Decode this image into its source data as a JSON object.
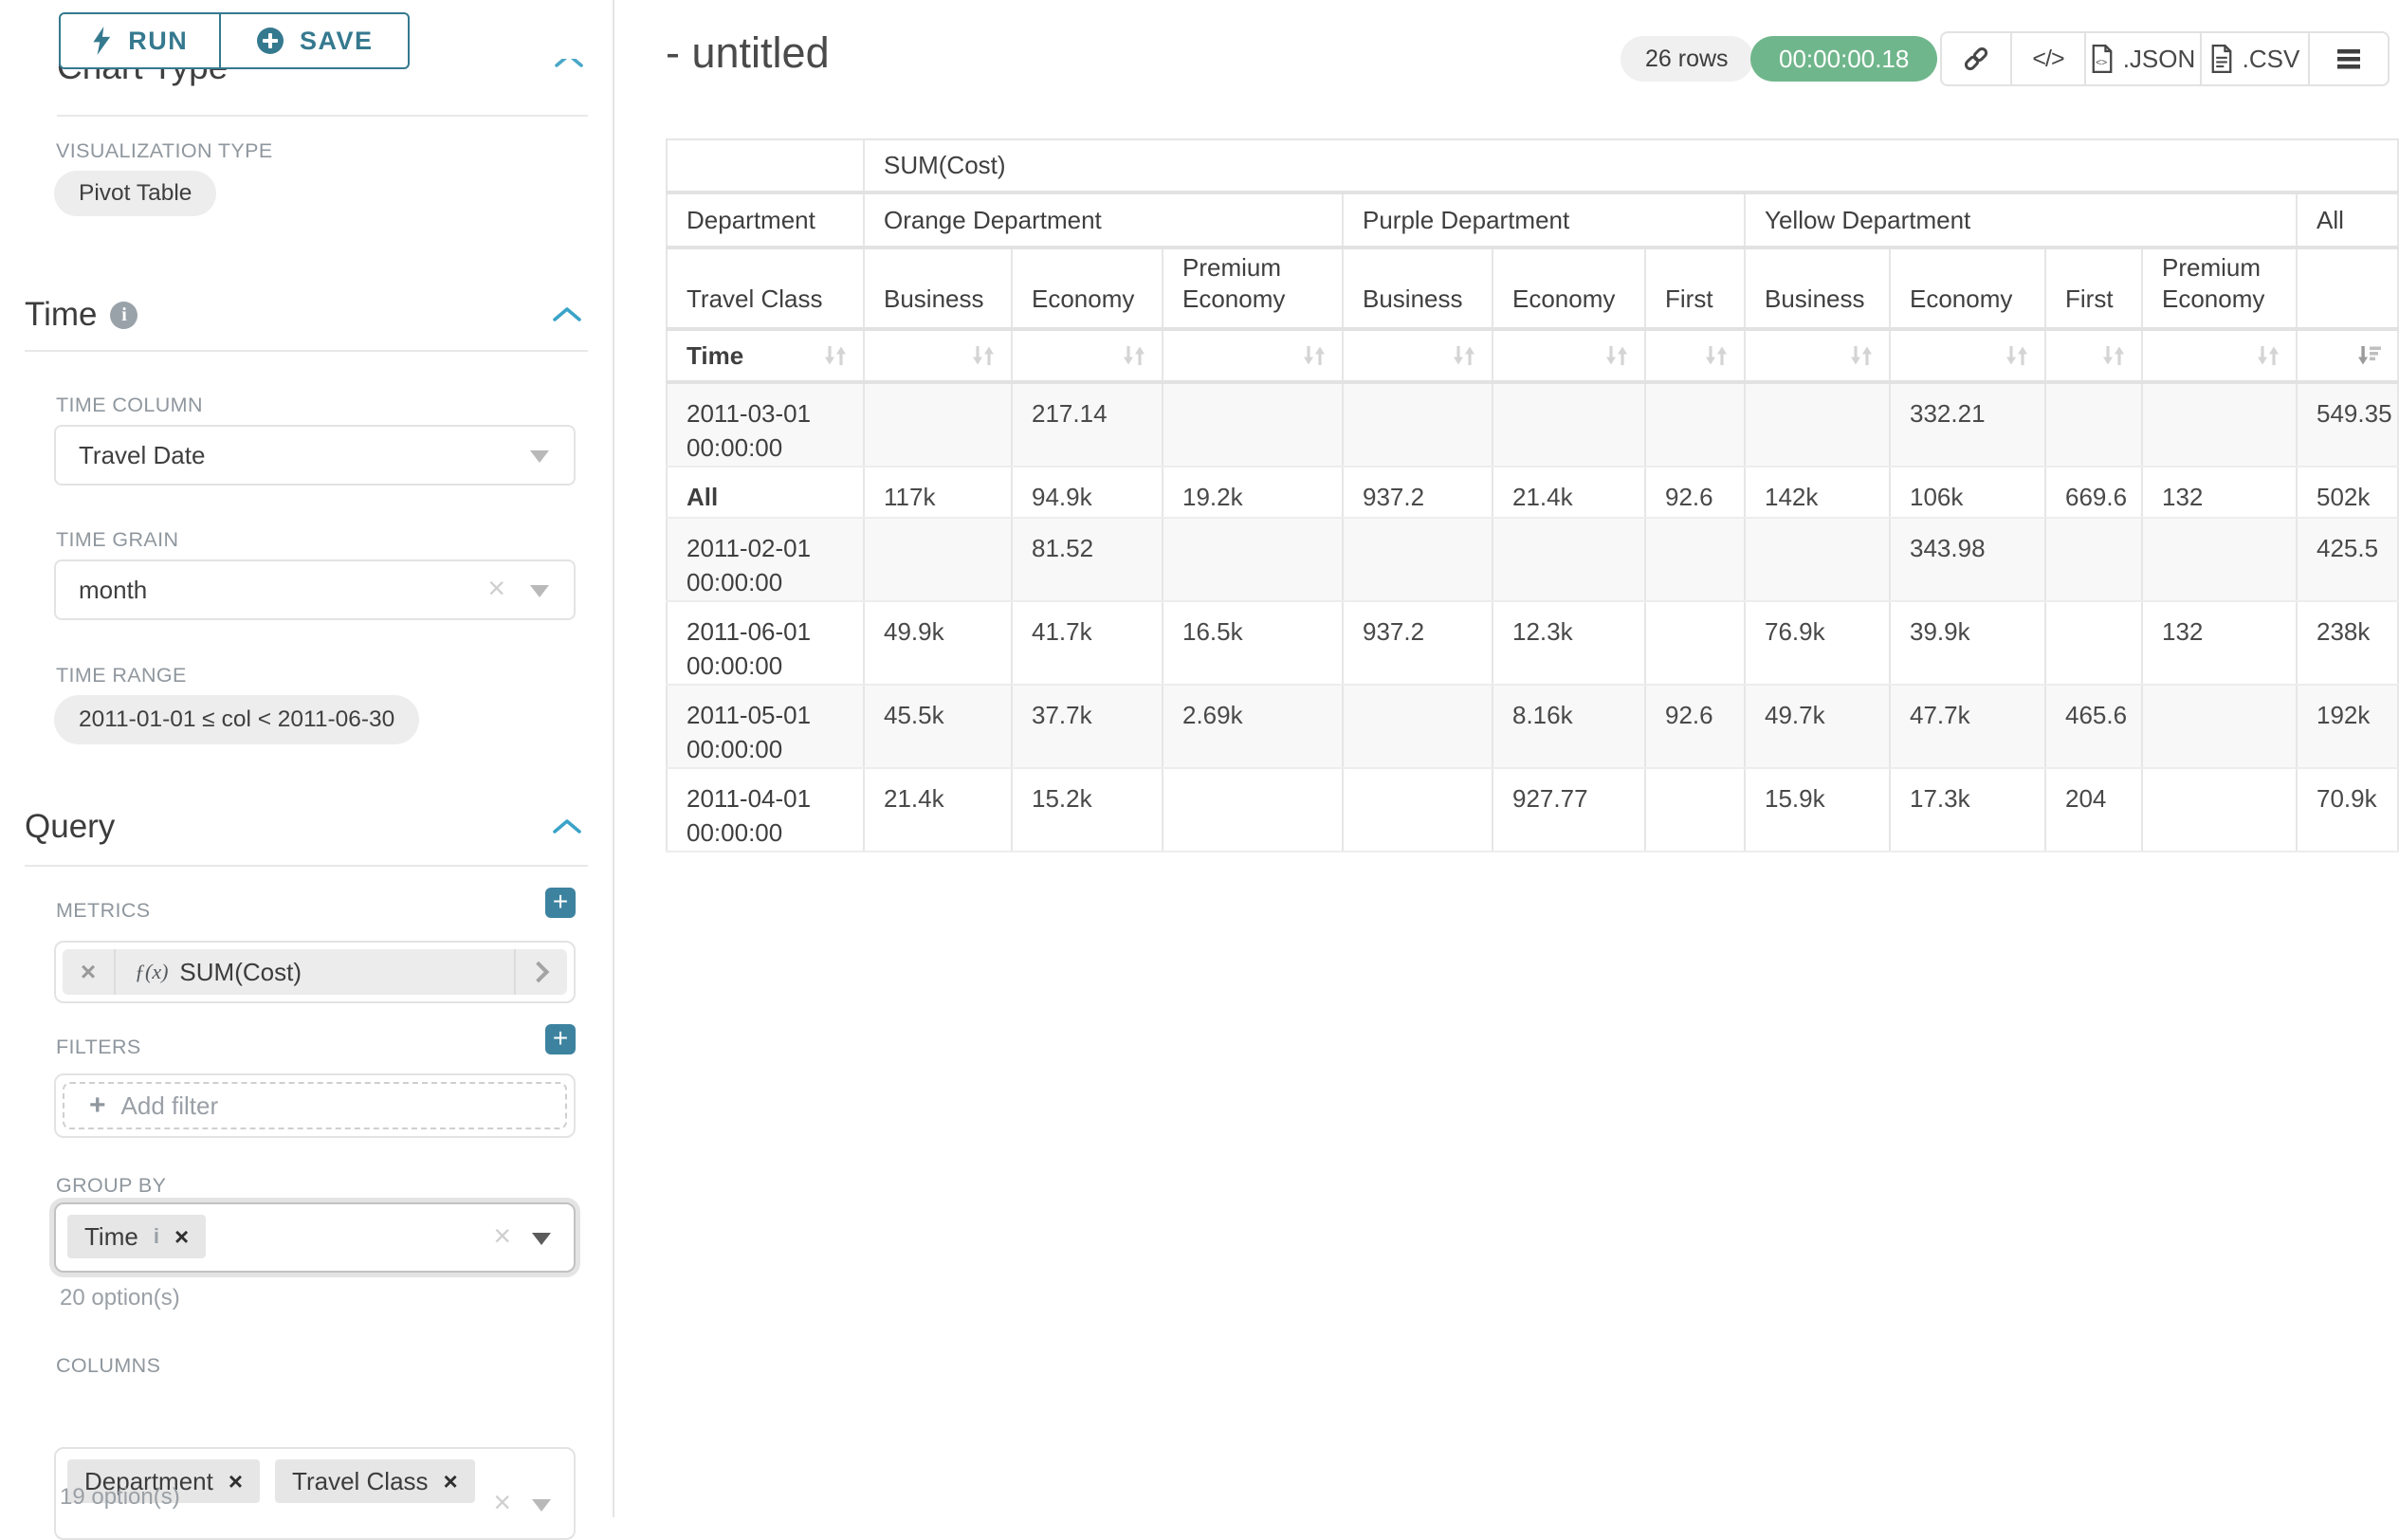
{
  "colors": {
    "accent_teal": "#35798f",
    "plus_teal": "#3d83a0",
    "chevron_blue": "#3ba3c8",
    "timer_green": "#70b68c"
  },
  "sidebar": {
    "run_label": "RUN",
    "save_label": "SAVE",
    "chart_type": {
      "title": "Chart Type",
      "viz_label": "VISUALIZATION TYPE",
      "viz_value": "Pivot Table"
    },
    "time": {
      "title": "Time",
      "column_label": "TIME COLUMN",
      "column_value": "Travel Date",
      "grain_label": "TIME GRAIN",
      "grain_value": "month",
      "range_label": "TIME RANGE",
      "range_value": "2011-01-01 ≤ col < 2011-06-30"
    },
    "query": {
      "title": "Query",
      "metrics_label": "METRICS",
      "metric": {
        "fx": "ƒ(x)",
        "name": "SUM(Cost)"
      },
      "filters_label": "FILTERS",
      "add_filter": "Add filter",
      "group_by_label": "GROUP BY",
      "group_by_tags": [
        "Time"
      ],
      "group_by_hint": "20 option(s)",
      "columns_label": "COLUMNS",
      "columns_tags": [
        "Department",
        "Travel Class"
      ],
      "columns_hint": "19 option(s)"
    }
  },
  "header": {
    "title": "- untitled",
    "rows_badge": "26 rows",
    "timer": "00:00:00.18",
    "export_json": ".JSON",
    "export_csv": ".CSV"
  },
  "pivot": {
    "metric_header": "SUM(Cost)",
    "corner": {
      "row2": "Department",
      "row3": "Travel Class",
      "row4": "Time"
    },
    "groups": [
      {
        "label": "Orange Department",
        "cols": [
          "Business",
          "Economy",
          "Premium Economy"
        ]
      },
      {
        "label": "Purple Department",
        "cols": [
          "Business",
          "Economy",
          "First"
        ]
      },
      {
        "label": "Yellow Department",
        "cols": [
          "Business",
          "Economy",
          "First",
          "Premium Economy"
        ]
      },
      {
        "label": "All",
        "cols": [
          ""
        ]
      }
    ],
    "rows": [
      {
        "label": "2011-03-01 00:00:00",
        "values": [
          "",
          "217.14",
          "",
          "",
          "",
          "",
          "",
          "332.21",
          "",
          "",
          "549.35"
        ]
      },
      {
        "label": "All",
        "values": [
          "117k",
          "94.9k",
          "19.2k",
          "937.2",
          "21.4k",
          "92.6",
          "142k",
          "106k",
          "669.6",
          "132",
          "502k"
        ]
      },
      {
        "label": "2011-02-01 00:00:00",
        "values": [
          "",
          "81.52",
          "",
          "",
          "",
          "",
          "",
          "343.98",
          "",
          "",
          "425.5"
        ]
      },
      {
        "label": "2011-06-01 00:00:00",
        "values": [
          "49.9k",
          "41.7k",
          "16.5k",
          "937.2",
          "12.3k",
          "",
          "76.9k",
          "39.9k",
          "",
          "132",
          "238k"
        ]
      },
      {
        "label": "2011-05-01 00:00:00",
        "values": [
          "45.5k",
          "37.7k",
          "2.69k",
          "",
          "8.16k",
          "92.6",
          "49.7k",
          "47.7k",
          "465.6",
          "",
          "192k"
        ]
      },
      {
        "label": "2011-04-01 00:00:00",
        "values": [
          "21.4k",
          "15.2k",
          "",
          "",
          "927.77",
          "",
          "15.9k",
          "17.3k",
          "204",
          "",
          "70.9k"
        ]
      }
    ]
  }
}
